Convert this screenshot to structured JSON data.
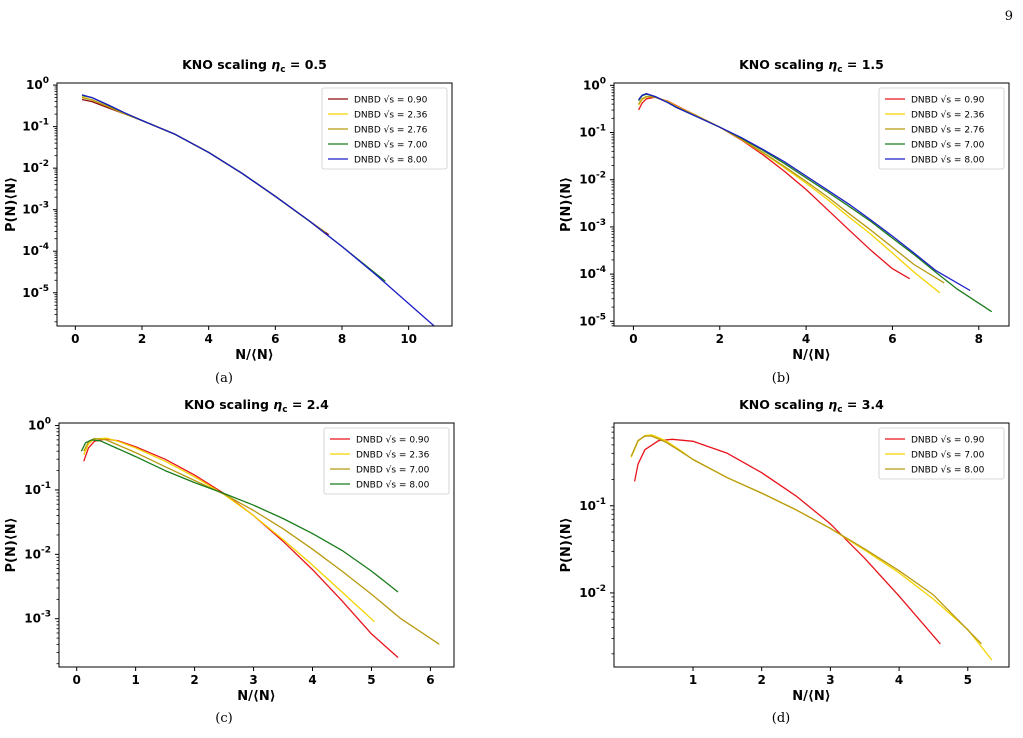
{
  "page": {
    "number": "9"
  },
  "captions": [
    "(a)",
    "(b)",
    "(c)",
    "(d)"
  ],
  "colors": {
    "red": "#e8141c",
    "yellow": "#f4d300",
    "olive": "#b89a10",
    "green": "#1a7c1a",
    "blue": "#1c1cc8",
    "darkred": "#8b0d0d"
  },
  "chart_data": [
    {
      "type": "line",
      "title": "KNO scaling η_c = 0.5",
      "xlabel": "N/⟨N⟩",
      "ylabel": "P(N)⟨N⟩",
      "xlim": [
        -0.55,
        11.3
      ],
      "ylog": true,
      "ylim_log10": [
        -5.8,
        0.05
      ],
      "xticks": [
        0,
        2,
        4,
        6,
        8,
        10
      ],
      "yticks_log10": [
        0,
        -1,
        -2,
        -3,
        -4,
        -5
      ],
      "legend_position": "top-right",
      "series": [
        {
          "name": "DNBD √s = 0.90",
          "color": "#8b0d0d",
          "x": [
            0.2,
            0.5,
            1,
            1.5,
            2,
            3,
            4,
            5,
            6,
            7,
            7.6
          ],
          "y": [
            0.45,
            0.4,
            0.28,
            0.2,
            0.14,
            0.065,
            0.024,
            0.0075,
            0.0021,
            0.00055,
            0.00025
          ]
        },
        {
          "name": "DNBD √s = 2.36",
          "color": "#f4d300",
          "x": [
            0.2,
            0.5,
            1,
            1.5,
            2,
            3,
            4,
            5,
            6,
            7.5
          ],
          "y": [
            0.52,
            0.44,
            0.3,
            0.2,
            0.14,
            0.065,
            0.024,
            0.0075,
            0.0021,
            0.00028
          ]
        },
        {
          "name": "DNBD √s = 2.76",
          "color": "#b89a10",
          "x": [
            0.2,
            0.5,
            1,
            1.5,
            2,
            3,
            4,
            5,
            6,
            7.5
          ],
          "y": [
            0.5,
            0.44,
            0.3,
            0.2,
            0.14,
            0.065,
            0.024,
            0.0075,
            0.0021,
            0.00028
          ]
        },
        {
          "name": "DNBD √s = 7.00",
          "color": "#1a7c1a",
          "x": [
            0.2,
            0.5,
            1,
            1.5,
            2,
            3,
            4,
            5,
            6,
            7,
            8,
            9.3
          ],
          "y": [
            0.56,
            0.5,
            0.32,
            0.21,
            0.14,
            0.065,
            0.024,
            0.0075,
            0.0021,
            0.00055,
            0.00013,
            1.9e-05
          ]
        },
        {
          "name": "DNBD √s = 8.00",
          "color": "#1c1cc8",
          "x": [
            0.2,
            0.5,
            1,
            1.5,
            2,
            3,
            4,
            5,
            6,
            7,
            8,
            9,
            10,
            10.8
          ],
          "y": [
            0.58,
            0.5,
            0.33,
            0.21,
            0.14,
            0.065,
            0.024,
            0.0075,
            0.0021,
            0.00055,
            0.00013,
            2.8e-05,
            5.5e-06,
            1.5e-06
          ]
        }
      ]
    },
    {
      "type": "line",
      "title": "KNO scaling η_c = 1.5",
      "xlabel": "N/⟨N⟩",
      "ylabel": "P(N)⟨N⟩",
      "xlim": [
        -0.45,
        8.7
      ],
      "ylog": true,
      "ylim_log10": [
        -5.1,
        0.05
      ],
      "xticks": [
        0,
        2,
        4,
        6,
        8
      ],
      "yticks_log10": [
        0,
        -1,
        -2,
        -3,
        -4,
        -5
      ],
      "legend_position": "top-right",
      "series": [
        {
          "name": "DNBD √s = 0.90",
          "color": "#e8141c",
          "x": [
            0.12,
            0.2,
            0.3,
            0.5,
            0.8,
            1,
            1.5,
            2,
            2.5,
            3,
            3.5,
            4,
            4.5,
            5,
            5.5,
            6,
            6.4
          ],
          "y": [
            0.3,
            0.42,
            0.52,
            0.56,
            0.46,
            0.37,
            0.22,
            0.13,
            0.07,
            0.034,
            0.015,
            0.0062,
            0.0023,
            0.00085,
            0.00032,
            0.00013,
            8e-05
          ]
        },
        {
          "name": "DNBD √s = 2.36",
          "color": "#f4d300",
          "x": [
            0.12,
            0.2,
            0.3,
            0.5,
            0.8,
            1,
            1.5,
            2,
            2.5,
            3,
            3.5,
            4,
            4.5,
            5,
            5.5,
            6,
            6.5,
            7.1
          ],
          "y": [
            0.38,
            0.5,
            0.57,
            0.57,
            0.45,
            0.36,
            0.22,
            0.13,
            0.072,
            0.037,
            0.018,
            0.0085,
            0.0038,
            0.0016,
            0.0007,
            0.00028,
            0.00011,
            4e-05
          ]
        },
        {
          "name": "DNBD √s = 2.76",
          "color": "#b89a10",
          "x": [
            0.12,
            0.2,
            0.3,
            0.5,
            0.8,
            1,
            1.5,
            2,
            2.5,
            3,
            3.5,
            4,
            4.5,
            5,
            5.5,
            6,
            6.5,
            7.2
          ],
          "y": [
            0.4,
            0.52,
            0.58,
            0.56,
            0.44,
            0.35,
            0.22,
            0.13,
            0.073,
            0.038,
            0.019,
            0.0092,
            0.0043,
            0.0019,
            0.00085,
            0.00037,
            0.00016,
            6.5e-05
          ]
        },
        {
          "name": "DNBD √s = 7.00",
          "color": "#1a7c1a",
          "x": [
            0.12,
            0.2,
            0.3,
            0.5,
            0.8,
            1,
            1.5,
            2,
            2.5,
            3,
            3.5,
            4,
            4.5,
            5,
            5.5,
            6,
            6.5,
            7,
            7.5,
            8.3
          ],
          "y": [
            0.47,
            0.6,
            0.65,
            0.58,
            0.43,
            0.34,
            0.21,
            0.13,
            0.076,
            0.042,
            0.022,
            0.011,
            0.0055,
            0.0027,
            0.0013,
            0.00058,
            0.00026,
            0.00011,
            4.8e-05,
            1.6e-05
          ]
        },
        {
          "name": "DNBD √s = 8.00",
          "color": "#1c1cc8",
          "x": [
            0.12,
            0.2,
            0.3,
            0.5,
            0.8,
            1,
            1.5,
            2,
            2.5,
            3,
            3.5,
            4,
            4.5,
            5,
            5.5,
            6,
            6.5,
            7,
            7.8
          ],
          "y": [
            0.5,
            0.62,
            0.67,
            0.58,
            0.43,
            0.34,
            0.21,
            0.13,
            0.078,
            0.044,
            0.024,
            0.012,
            0.006,
            0.003,
            0.0014,
            0.00064,
            0.00028,
            0.00012,
            4.5e-05
          ]
        }
      ]
    },
    {
      "type": "line",
      "title": "KNO scaling η_c = 2.4",
      "xlabel": "N/⟨N⟩",
      "ylabel": "P(N)⟨N⟩",
      "xlim": [
        -0.3,
        6.4
      ],
      "ylog": true,
      "ylim_log10": [
        -3.75,
        0.04
      ],
      "xticks": [
        0,
        1,
        2,
        3,
        4,
        5,
        6
      ],
      "yticks_log10": [
        0,
        -1,
        -2,
        -3
      ],
      "legend_position": "top-right",
      "series": [
        {
          "name": "DNBD √s = 0.90",
          "color": "#e8141c",
          "x": [
            0.12,
            0.2,
            0.3,
            0.5,
            0.7,
            1,
            1.5,
            2,
            2.5,
            3,
            3.5,
            4,
            4.5,
            5,
            5.45
          ],
          "y": [
            0.28,
            0.45,
            0.57,
            0.62,
            0.58,
            0.47,
            0.3,
            0.17,
            0.088,
            0.04,
            0.016,
            0.0058,
            0.0019,
            0.00058,
            0.00025
          ]
        },
        {
          "name": "DNBD √s = 2.36",
          "color": "#f4d300",
          "x": [
            0.12,
            0.2,
            0.3,
            0.5,
            0.7,
            1,
            1.5,
            2,
            2.5,
            3,
            3.5,
            4,
            4.5,
            5.05
          ],
          "y": [
            0.35,
            0.52,
            0.62,
            0.64,
            0.57,
            0.45,
            0.28,
            0.16,
            0.085,
            0.04,
            0.017,
            0.0068,
            0.0026,
            0.0009
          ]
        },
        {
          "name": "DNBD √s = 7.00",
          "color": "#b89a10",
          "x": [
            0.12,
            0.2,
            0.3,
            0.5,
            0.7,
            1,
            1.5,
            2,
            2.5,
            3,
            3.5,
            4,
            4.5,
            5,
            5.5,
            6.15
          ],
          "y": [
            0.4,
            0.56,
            0.63,
            0.6,
            0.5,
            0.38,
            0.23,
            0.14,
            0.086,
            0.048,
            0.025,
            0.012,
            0.0055,
            0.0024,
            0.001,
            0.0004
          ]
        },
        {
          "name": "DNBD √s = 8.00",
          "color": "#1a7c1a",
          "x": [
            0.08,
            0.15,
            0.25,
            0.4,
            0.6,
            1,
            1.5,
            2,
            2.5,
            3,
            3.5,
            4,
            4.5,
            5,
            5.45
          ],
          "y": [
            0.4,
            0.54,
            0.6,
            0.58,
            0.48,
            0.33,
            0.2,
            0.13,
            0.088,
            0.058,
            0.036,
            0.021,
            0.0115,
            0.0055,
            0.0026
          ]
        }
      ]
    },
    {
      "type": "line",
      "title": "KNO scaling η_c = 3.4",
      "xlabel": "N/⟨N⟩",
      "ylabel": "P(N)⟨N⟩",
      "xlim": [
        -0.15,
        5.6
      ],
      "ylog": true,
      "ylim_log10": [
        -2.85,
        -0.05
      ],
      "xticks": [
        1,
        2,
        3,
        4,
        5
      ],
      "yticks_log10": [
        -1,
        -2
      ],
      "legend_position": "top-right",
      "series": [
        {
          "name": "DNBD √s = 0.90",
          "color": "#e8141c",
          "x": [
            0.15,
            0.2,
            0.3,
            0.5,
            0.7,
            1,
            1.5,
            2,
            2.5,
            3,
            3.5,
            4,
            4.6
          ],
          "y": [
            0.19,
            0.3,
            0.44,
            0.56,
            0.58,
            0.55,
            0.4,
            0.24,
            0.13,
            0.062,
            0.025,
            0.0092,
            0.0026
          ]
        },
        {
          "name": "DNBD √s = 7.00",
          "color": "#f4d300",
          "x": [
            0.1,
            0.2,
            0.3,
            0.4,
            0.6,
            0.8,
            1,
            1.5,
            2,
            2.5,
            3,
            3.5,
            4,
            4.5,
            5,
            5.35
          ],
          "y": [
            0.36,
            0.55,
            0.64,
            0.65,
            0.56,
            0.44,
            0.34,
            0.21,
            0.14,
            0.09,
            0.055,
            0.031,
            0.017,
            0.0085,
            0.0038,
            0.0017
          ]
        },
        {
          "name": "DNBD √s = 8.00",
          "color": "#b89a10",
          "x": [
            0.1,
            0.2,
            0.3,
            0.4,
            0.6,
            0.8,
            1,
            1.5,
            2,
            2.5,
            3,
            3.5,
            4,
            4.5,
            5.2
          ],
          "y": [
            0.37,
            0.56,
            0.63,
            0.63,
            0.54,
            0.43,
            0.34,
            0.21,
            0.14,
            0.09,
            0.055,
            0.032,
            0.018,
            0.0095,
            0.0026
          ]
        }
      ]
    }
  ]
}
